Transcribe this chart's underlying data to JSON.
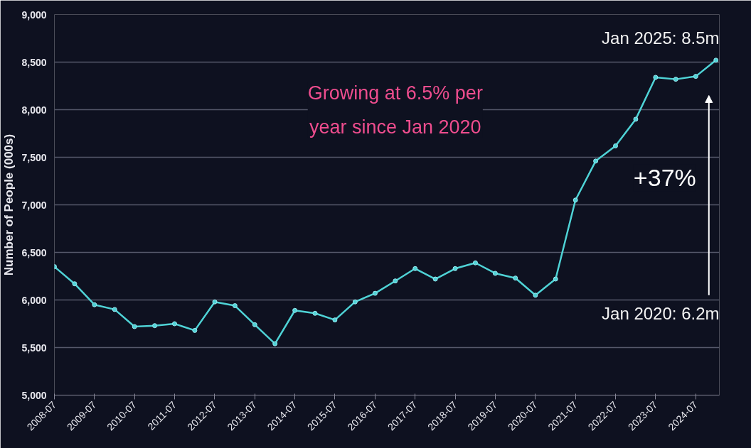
{
  "chart_data": {
    "type": "line",
    "ylabel": "Number of People (000s)",
    "x": [
      "2008-07",
      "2009-01",
      "2009-07",
      "2010-01",
      "2010-07",
      "2011-01",
      "2011-07",
      "2012-01",
      "2012-07",
      "2013-01",
      "2013-07",
      "2014-01",
      "2014-07",
      "2015-01",
      "2015-07",
      "2016-01",
      "2016-07",
      "2017-01",
      "2017-07",
      "2018-01",
      "2018-07",
      "2019-01",
      "2019-07",
      "2020-01",
      "2020-07",
      "2021-01",
      "2021-07",
      "2022-01",
      "2022-07",
      "2023-01",
      "2023-07",
      "2024-01",
      "2024-07",
      "2025-01"
    ],
    "series": [
      {
        "color": "#4fd3d6",
        "values": [
          6350,
          6170,
          5950,
          5900,
          5720,
          5730,
          5750,
          5680,
          5980,
          5940,
          5740,
          5540,
          5890,
          5860,
          5790,
          5980,
          6070,
          6200,
          6330,
          6220,
          6330,
          6390,
          6280,
          6230,
          6050,
          6220,
          7050,
          7460,
          7620,
          7900,
          8340,
          8320,
          8350,
          8520
        ]
      }
    ],
    "xlim": [
      "2008-07",
      "2025-02"
    ],
    "xticks": [
      {
        "value": "2008-07",
        "label": "2008-07"
      },
      {
        "value": "2009-07",
        "label": "2009-07"
      },
      {
        "value": "2010-07",
        "label": "2010-07"
      },
      {
        "value": "2011-07",
        "label": "2011-07"
      },
      {
        "value": "2012-07",
        "label": "2012-07"
      },
      {
        "value": "2013-07",
        "label": "2013-07"
      },
      {
        "value": "2014-07",
        "label": "2014-07"
      },
      {
        "value": "2015-07",
        "label": "2015-07"
      },
      {
        "value": "2016-07",
        "label": "2016-07"
      },
      {
        "value": "2017-07",
        "label": "2017-07"
      },
      {
        "value": "2018-07",
        "label": "2018-07"
      },
      {
        "value": "2019-07",
        "label": "2019-07"
      },
      {
        "value": "2020-07",
        "label": "2020-07"
      },
      {
        "value": "2021-07",
        "label": "2021-07"
      },
      {
        "value": "2022-07",
        "label": "2022-07"
      },
      {
        "value": "2023-07",
        "label": "2023-07"
      },
      {
        "value": "2024-07",
        "label": "2024-07"
      }
    ],
    "ylim": [
      5000,
      9000
    ],
    "yticks": [
      {
        "value": 5000,
        "label": "5,000"
      },
      {
        "value": 5500,
        "label": "5,500"
      },
      {
        "value": 6000,
        "label": "6,000"
      },
      {
        "value": 6500,
        "label": "6,500"
      },
      {
        "value": 7000,
        "label": "7,000"
      },
      {
        "value": 7500,
        "label": "7,500"
      },
      {
        "value": 8000,
        "label": "8,000"
      },
      {
        "value": 8500,
        "label": "8,500"
      },
      {
        "value": 9000,
        "label": "9,000"
      }
    ],
    "grid": "y",
    "marker": "circle",
    "line_style": "solid",
    "annotations": [
      "Jan 2025: 8.5m",
      "Jan 2020: 6.2m",
      "Growing at 6.5% per year since Jan 2020",
      "+37%"
    ]
  }
}
